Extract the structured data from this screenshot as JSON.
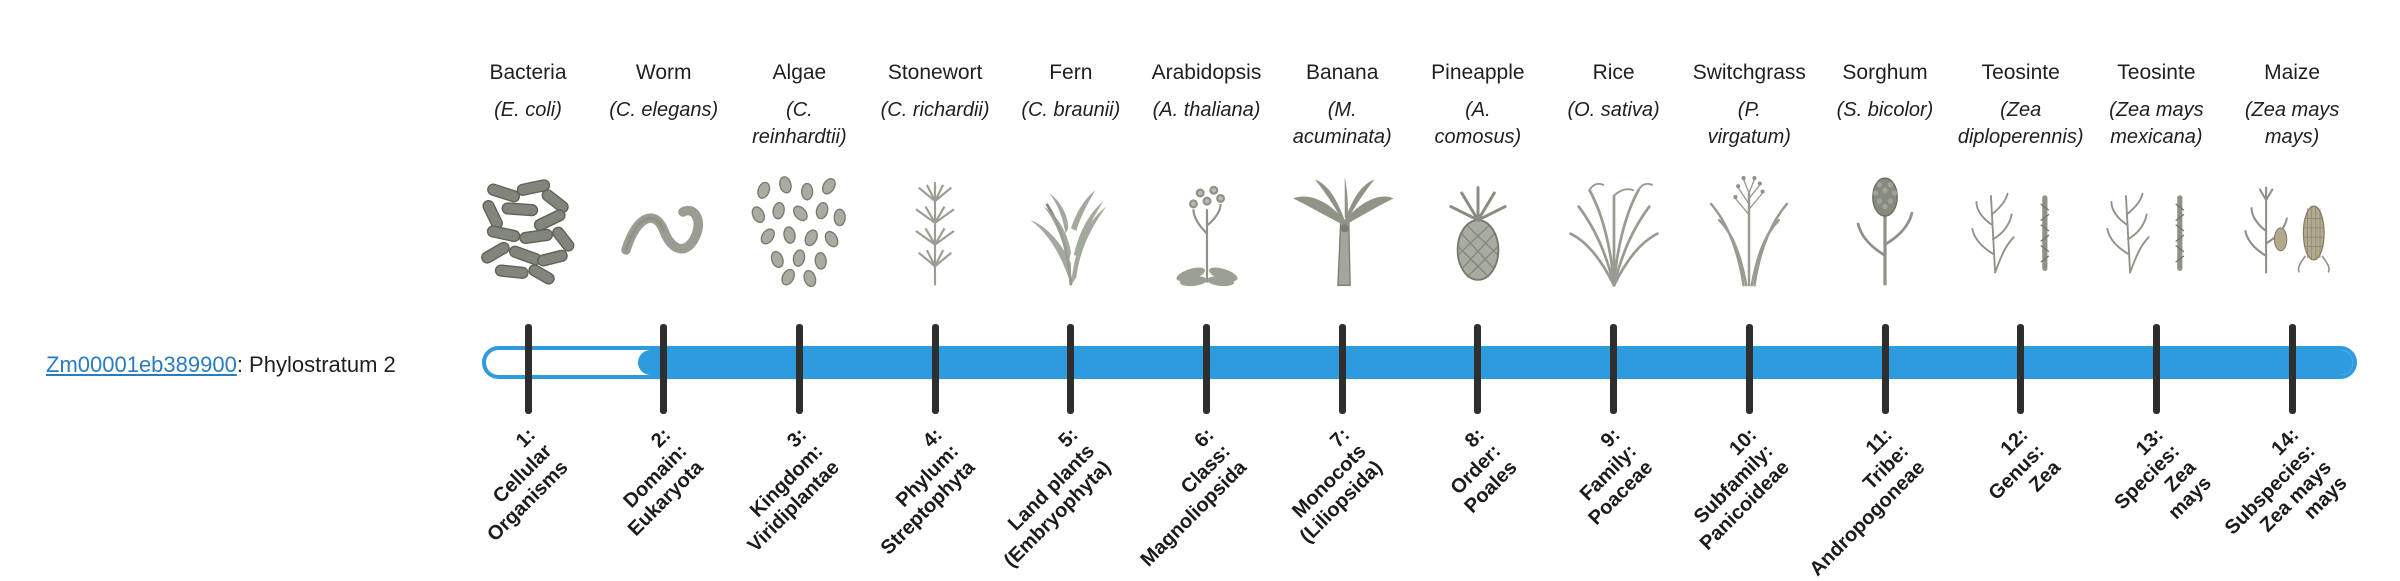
{
  "colors": {
    "bar": "#2e9bdf",
    "link": "#2a7cc0",
    "tick": "#2e2e2e",
    "organism_gray": "#8f9287",
    "maize_ear_tan": "#b3aa8f"
  },
  "gene": {
    "id": "Zm00001eb389900",
    "suffix": ": Phylostratum 2",
    "phylostratum_label": "Phylostratum 2"
  },
  "strata": [
    {
      "num": 1,
      "species_name": "Bacteria",
      "species_sci": "(E. coli)",
      "stage_label": "1:\nCellular\nOrganisms",
      "glyph": "bacteria",
      "filled": false
    },
    {
      "num": 2,
      "species_name": "Worm",
      "species_sci": "(C. elegans)",
      "stage_label": "2:\nDomain:\nEukaryota",
      "glyph": "worm",
      "filled": true
    },
    {
      "num": 3,
      "species_name": "Algae",
      "species_sci": "(C.\nreinhardtii)",
      "stage_label": "3:\nKingdom:\nViridiplantae",
      "glyph": "algae",
      "filled": true
    },
    {
      "num": 4,
      "species_name": "Stonewort",
      "species_sci": "(C. richardii)",
      "stage_label": "4:\nPhylum:\nStreptophyta",
      "glyph": "stonewort",
      "filled": true
    },
    {
      "num": 5,
      "species_name": "Fern",
      "species_sci": "(C. braunii)",
      "stage_label": "5:\nLand plants\n(Embryophyta)",
      "glyph": "fern",
      "filled": true
    },
    {
      "num": 6,
      "species_name": "Arabidopsis",
      "species_sci": "(A. thaliana)",
      "stage_label": "6:\nClass:\nMagnoliopsida",
      "glyph": "arabidopsis",
      "filled": true
    },
    {
      "num": 7,
      "species_name": "Banana",
      "species_sci": "(M.\nacuminata)",
      "stage_label": "7:\nMonocots\n(Liliopsida)",
      "glyph": "banana",
      "filled": true
    },
    {
      "num": 8,
      "species_name": "Pineapple",
      "species_sci": "(A.\ncomosus)",
      "stage_label": "8:\nOrder:\nPoales",
      "glyph": "pineapple",
      "filled": true
    },
    {
      "num": 9,
      "species_name": "Rice",
      "species_sci": "(O. sativa)",
      "stage_label": "9:\nFamily:\nPoaceae",
      "glyph": "rice",
      "filled": true
    },
    {
      "num": 10,
      "species_name": "Switchgrass",
      "species_sci": "(P.\nvirgatum)",
      "stage_label": "10:\nSubfamily:\nPanicoideae",
      "glyph": "switchgrass",
      "filled": true
    },
    {
      "num": 11,
      "species_name": "Sorghum",
      "species_sci": "(S. bicolor)",
      "stage_label": "11:\nTribe:\nAndropogoneae",
      "glyph": "sorghum",
      "filled": true
    },
    {
      "num": 12,
      "species_name": "Teosinte",
      "species_sci": "(Zea\ndiploperennis)",
      "stage_label": "12:\nGenus:\nZea",
      "glyph": "teosinte",
      "filled": true
    },
    {
      "num": 13,
      "species_name": "Teosinte",
      "species_sci": "(Zea mays\nmexicana)",
      "stage_label": "13:\nSpecies:\nZea\nmays",
      "glyph": "teosinte",
      "filled": true
    },
    {
      "num": 14,
      "species_name": "Maize",
      "species_sci": "(Zea mays\nmays)",
      "stage_label": "14:\nSubspecies:\nZea mays\nmays",
      "glyph": "maize",
      "filled": true
    }
  ]
}
